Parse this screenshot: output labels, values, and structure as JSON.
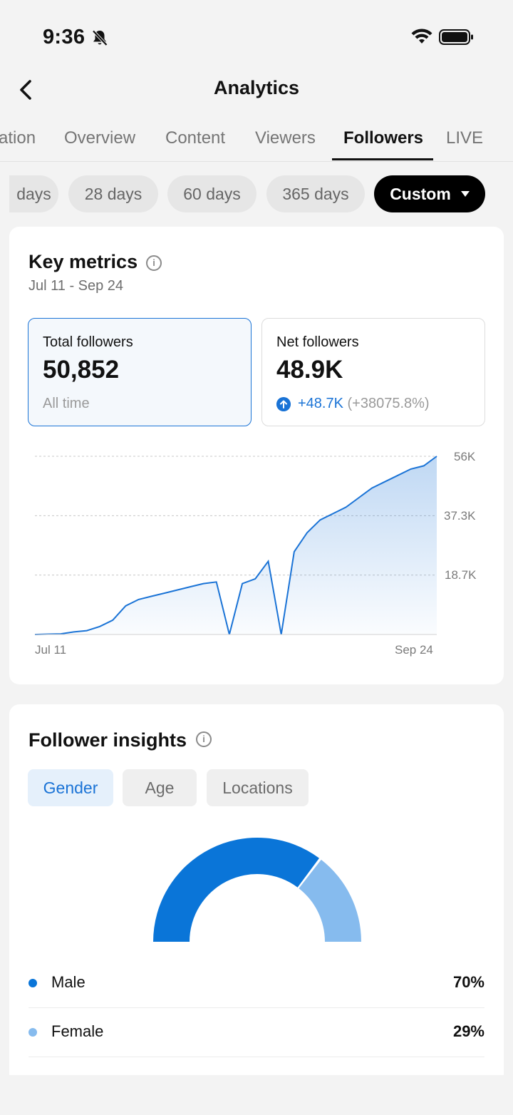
{
  "status_bar": {
    "time": "9:36"
  },
  "header": {
    "title": "Analytics"
  },
  "tabs": [
    {
      "label": "ation"
    },
    {
      "label": "Overview"
    },
    {
      "label": "Content"
    },
    {
      "label": "Viewers"
    },
    {
      "label": "Followers",
      "active": true
    },
    {
      "label": "LIVE"
    }
  ],
  "date_ranges": [
    {
      "label": "days"
    },
    {
      "label": "28 days"
    },
    {
      "label": "60 days"
    },
    {
      "label": "365 days"
    },
    {
      "label": "Custom",
      "selected": true
    }
  ],
  "key_metrics": {
    "title": "Key metrics",
    "date_range": "Jul 11 - Sep 24",
    "total": {
      "label": "Total followers",
      "value": "50,852",
      "sub": "All time"
    },
    "net": {
      "label": "Net followers",
      "value": "48.9K",
      "delta": "+48.7K",
      "delta_pct": "(+38075.8%)"
    }
  },
  "chart_data": {
    "type": "area",
    "x_start_label": "Jul 11",
    "x_end_label": "Sep 24",
    "y_tick_labels": [
      "56K",
      "37.3K",
      "18.7K"
    ],
    "ylim": [
      0,
      56000
    ],
    "grid": true,
    "values": [
      0,
      120,
      200,
      800,
      1200,
      2500,
      4500,
      9000,
      11000,
      12000,
      13000,
      14000,
      15000,
      16000,
      16500,
      0,
      16000,
      17500,
      23000,
      0,
      26000,
      32000,
      36000,
      38000,
      40000,
      43000,
      46000,
      48000,
      50000,
      52000,
      53000,
      56000
    ],
    "accent": "#1a73d6"
  },
  "insights": {
    "title": "Follower insights",
    "segments": [
      {
        "label": "Gender",
        "active": true
      },
      {
        "label": "Age"
      },
      {
        "label": "Locations"
      }
    ],
    "gender": [
      {
        "name": "Male",
        "value": "70%",
        "pct": 70,
        "color": "#0a75d8"
      },
      {
        "name": "Female",
        "value": "29%",
        "pct": 29,
        "color": "#86bbee"
      }
    ]
  }
}
